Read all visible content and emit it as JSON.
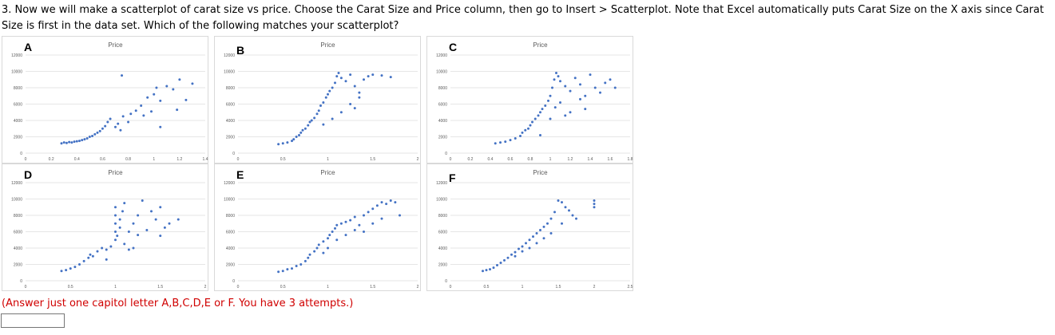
{
  "question": "3. Now we will make a scatterplot of carat size vs price. Choose the Carat Size and Price column, then go to Insert > Scatterplot. Note that Excel automatically puts Carat Size on the X axis since Carat Size is first in the data set. Which of the following matches your scatterplot?",
  "answer_note": "(Answer just one capitol letter A,B,C,D,E or F. You have 3 attempts.)",
  "answer_value": "",
  "chart_data": [
    {
      "letter": "A",
      "type": "scatter",
      "title": "Price",
      "color": "#4472c4",
      "xlim": [
        0,
        1.4
      ],
      "ylim": [
        0,
        12000
      ],
      "grid": true,
      "xticks": [
        "0",
        "0.2",
        "0.4",
        "0.6",
        "0.8",
        "1",
        "1.2",
        "1.4"
      ],
      "yticks": [
        "0",
        "2000",
        "4000",
        "6000",
        "8000",
        "10000",
        "12000"
      ],
      "points": [
        [
          0.28,
          1200
        ],
        [
          0.3,
          1300
        ],
        [
          0.32,
          1250
        ],
        [
          0.34,
          1350
        ],
        [
          0.36,
          1300
        ],
        [
          0.38,
          1400
        ],
        [
          0.4,
          1450
        ],
        [
          0.42,
          1500
        ],
        [
          0.44,
          1600
        ],
        [
          0.46,
          1700
        ],
        [
          0.48,
          1800
        ],
        [
          0.5,
          2000
        ],
        [
          0.52,
          2100
        ],
        [
          0.54,
          2300
        ],
        [
          0.56,
          2500
        ],
        [
          0.58,
          2700
        ],
        [
          0.6,
          3000
        ],
        [
          0.62,
          3300
        ],
        [
          0.64,
          3800
        ],
        [
          0.66,
          4200
        ],
        [
          0.7,
          3200
        ],
        [
          0.72,
          3600
        ],
        [
          0.74,
          2800
        ],
        [
          0.76,
          4500
        ],
        [
          0.8,
          3800
        ],
        [
          0.82,
          4800
        ],
        [
          0.86,
          5200
        ],
        [
          0.9,
          5800
        ],
        [
          0.92,
          4600
        ],
        [
          0.95,
          6800
        ],
        [
          1.0,
          7200
        ],
        [
          1.02,
          8000
        ],
        [
          1.05,
          6400
        ],
        [
          1.1,
          8200
        ],
        [
          1.15,
          7800
        ],
        [
          1.2,
          9000
        ],
        [
          1.25,
          6500
        ],
        [
          1.3,
          8500
        ],
        [
          0.75,
          9500
        ],
        [
          1.05,
          3200
        ],
        [
          0.98,
          5100
        ],
        [
          1.18,
          5300
        ]
      ]
    },
    {
      "letter": "B",
      "type": "scatter",
      "title": "Price",
      "color": "#4472c4",
      "xlim": [
        0,
        2
      ],
      "ylim": [
        0,
        12000
      ],
      "grid": true,
      "xticks": [
        "0",
        "0.5",
        "1",
        "1.5",
        "2"
      ],
      "yticks": [
        "0",
        "2000",
        "4000",
        "6000",
        "8000",
        "10000",
        "12000"
      ],
      "points": [
        [
          0.45,
          1100
        ],
        [
          0.5,
          1200
        ],
        [
          0.55,
          1300
        ],
        [
          0.6,
          1500
        ],
        [
          0.62,
          1700
        ],
        [
          0.65,
          2000
        ],
        [
          0.68,
          2200
        ],
        [
          0.7,
          2500
        ],
        [
          0.72,
          2800
        ],
        [
          0.75,
          3000
        ],
        [
          0.78,
          3400
        ],
        [
          0.8,
          3800
        ],
        [
          0.82,
          4000
        ],
        [
          0.85,
          4300
        ],
        [
          0.88,
          4800
        ],
        [
          0.9,
          5200
        ],
        [
          0.92,
          5800
        ],
        [
          0.95,
          6200
        ],
        [
          0.98,
          6800
        ],
        [
          1.0,
          7200
        ],
        [
          1.02,
          7600
        ],
        [
          1.05,
          8000
        ],
        [
          1.08,
          8600
        ],
        [
          1.1,
          9400
        ],
        [
          1.12,
          9800
        ],
        [
          1.15,
          9200
        ],
        [
          1.2,
          8800
        ],
        [
          1.25,
          9600
        ],
        [
          1.3,
          8200
        ],
        [
          1.35,
          7400
        ],
        [
          1.4,
          9000
        ],
        [
          1.45,
          9400
        ],
        [
          1.5,
          9600
        ],
        [
          1.6,
          9500
        ],
        [
          1.7,
          9300
        ],
        [
          0.95,
          3500
        ],
        [
          1.05,
          4200
        ],
        [
          1.15,
          5000
        ],
        [
          1.25,
          6000
        ],
        [
          1.3,
          5500
        ],
        [
          1.35,
          6800
        ]
      ]
    },
    {
      "letter": "C",
      "type": "scatter",
      "title": "Price",
      "color": "#4472c4",
      "xlim": [
        0,
        1.8
      ],
      "ylim": [
        0,
        12000
      ],
      "grid": true,
      "xticks": [
        "0",
        "0.2",
        "0.4",
        "0.6",
        "0.8",
        "1",
        "1.2",
        "1.4",
        "1.6",
        "1.8"
      ],
      "yticks": [
        "0",
        "2000",
        "4000",
        "6000",
        "8000",
        "10000",
        "12000"
      ],
      "points": [
        [
          0.45,
          1200
        ],
        [
          0.5,
          1300
        ],
        [
          0.55,
          1400
        ],
        [
          0.6,
          1600
        ],
        [
          0.65,
          1800
        ],
        [
          0.7,
          2100
        ],
        [
          0.72,
          2500
        ],
        [
          0.75,
          2800
        ],
        [
          0.78,
          3000
        ],
        [
          0.8,
          3400
        ],
        [
          0.82,
          3800
        ],
        [
          0.85,
          4200
        ],
        [
          0.88,
          4600
        ],
        [
          0.9,
          5000
        ],
        [
          0.92,
          5400
        ],
        [
          0.95,
          5800
        ],
        [
          0.98,
          6400
        ],
        [
          1.0,
          7000
        ],
        [
          1.02,
          8000
        ],
        [
          1.04,
          9000
        ],
        [
          1.06,
          9800
        ],
        [
          1.08,
          9400
        ],
        [
          1.1,
          8800
        ],
        [
          1.15,
          8200
        ],
        [
          1.2,
          7600
        ],
        [
          1.25,
          9200
        ],
        [
          1.3,
          8400
        ],
        [
          1.35,
          7000
        ],
        [
          1.4,
          9600
        ],
        [
          1.45,
          8000
        ],
        [
          1.5,
          7400
        ],
        [
          1.55,
          8600
        ],
        [
          1.6,
          9000
        ],
        [
          1.65,
          8000
        ],
        [
          1.05,
          5600
        ],
        [
          1.1,
          6200
        ],
        [
          1.2,
          5000
        ],
        [
          1.3,
          6600
        ],
        [
          0.9,
          2200
        ],
        [
          1.0,
          4200
        ],
        [
          1.15,
          4600
        ],
        [
          1.35,
          5400
        ]
      ]
    },
    {
      "letter": "D",
      "type": "scatter",
      "title": "Price",
      "color": "#4472c4",
      "xlim": [
        0,
        2
      ],
      "ylim": [
        0,
        12000
      ],
      "grid": true,
      "xticks": [
        "0",
        "0.5",
        "1",
        "1.5",
        "2"
      ],
      "yticks": [
        "0",
        "2000",
        "4000",
        "6000",
        "8000",
        "10000",
        "12000"
      ],
      "points": [
        [
          0.4,
          1200
        ],
        [
          0.45,
          1300
        ],
        [
          0.5,
          1500
        ],
        [
          0.55,
          1700
        ],
        [
          0.6,
          2000
        ],
        [
          0.65,
          2400
        ],
        [
          0.7,
          2800
        ],
        [
          0.72,
          3200
        ],
        [
          0.75,
          3000
        ],
        [
          0.8,
          3600
        ],
        [
          0.85,
          4000
        ],
        [
          0.9,
          3800
        ],
        [
          0.95,
          4200
        ],
        [
          1.0,
          5000
        ],
        [
          1.0,
          6000
        ],
        [
          1.0,
          7000
        ],
        [
          1.0,
          8000
        ],
        [
          1.0,
          9000
        ],
        [
          1.02,
          5500
        ],
        [
          1.05,
          6500
        ],
        [
          1.05,
          7500
        ],
        [
          1.08,
          8500
        ],
        [
          1.1,
          4500
        ],
        [
          1.1,
          9500
        ],
        [
          1.15,
          6000
        ],
        [
          1.2,
          7000
        ],
        [
          1.2,
          4000
        ],
        [
          1.25,
          8000
        ],
        [
          1.3,
          9800
        ],
        [
          1.4,
          8500
        ],
        [
          1.45,
          7500
        ],
        [
          1.5,
          9000
        ],
        [
          1.55,
          6500
        ],
        [
          1.6,
          7000
        ],
        [
          1.7,
          7500
        ],
        [
          1.5,
          5500
        ],
        [
          1.35,
          6200
        ],
        [
          1.15,
          3800
        ],
        [
          0.9,
          2600
        ],
        [
          1.25,
          5600
        ]
      ]
    },
    {
      "letter": "E",
      "type": "scatter",
      "title": "Price",
      "color": "#4472c4",
      "xlim": [
        0,
        2
      ],
      "ylim": [
        0,
        12000
      ],
      "grid": true,
      "xticks": [
        "0",
        "0.5",
        "1",
        "1.5",
        "2"
      ],
      "yticks": [
        "0",
        "2000",
        "4000",
        "6000",
        "8000",
        "10000",
        "12000"
      ],
      "points": [
        [
          0.45,
          1100
        ],
        [
          0.5,
          1200
        ],
        [
          0.55,
          1400
        ],
        [
          0.6,
          1500
        ],
        [
          0.65,
          1800
        ],
        [
          0.7,
          2000
        ],
        [
          0.75,
          2400
        ],
        [
          0.78,
          2800
        ],
        [
          0.8,
          3200
        ],
        [
          0.85,
          3600
        ],
        [
          0.88,
          4000
        ],
        [
          0.9,
          4400
        ],
        [
          0.95,
          4800
        ],
        [
          1.0,
          5200
        ],
        [
          1.02,
          5600
        ],
        [
          1.05,
          6000
        ],
        [
          1.08,
          6400
        ],
        [
          1.1,
          6800
        ],
        [
          1.15,
          7000
        ],
        [
          1.2,
          7200
        ],
        [
          1.25,
          7400
        ],
        [
          1.3,
          7800
        ],
        [
          1.35,
          6800
        ],
        [
          1.4,
          8000
        ],
        [
          1.45,
          8400
        ],
        [
          1.5,
          8800
        ],
        [
          1.55,
          9200
        ],
        [
          1.6,
          9600
        ],
        [
          1.65,
          9400
        ],
        [
          1.7,
          9800
        ],
        [
          1.75,
          9600
        ],
        [
          1.8,
          8000
        ],
        [
          1.0,
          4000
        ],
        [
          1.1,
          5000
        ],
        [
          1.2,
          5600
        ],
        [
          1.3,
          6200
        ],
        [
          1.4,
          6000
        ],
        [
          1.5,
          7000
        ],
        [
          1.6,
          7600
        ],
        [
          0.95,
          3400
        ]
      ]
    },
    {
      "letter": "F",
      "type": "scatter",
      "title": "Price",
      "color": "#4472c4",
      "xlim": [
        0,
        2.5
      ],
      "ylim": [
        0,
        12000
      ],
      "grid": true,
      "xticks": [
        "0",
        "0.5",
        "1",
        "1.5",
        "2",
        "2.5"
      ],
      "yticks": [
        "0",
        "2000",
        "4000",
        "6000",
        "8000",
        "10000",
        "12000"
      ],
      "points": [
        [
          0.45,
          1200
        ],
        [
          0.5,
          1300
        ],
        [
          0.55,
          1400
        ],
        [
          0.6,
          1600
        ],
        [
          0.65,
          1900
        ],
        [
          0.7,
          2200
        ],
        [
          0.75,
          2500
        ],
        [
          0.8,
          2800
        ],
        [
          0.85,
          3200
        ],
        [
          0.9,
          3500
        ],
        [
          0.95,
          3900
        ],
        [
          1.0,
          4200
        ],
        [
          1.05,
          4600
        ],
        [
          1.1,
          5000
        ],
        [
          1.15,
          5400
        ],
        [
          1.2,
          5800
        ],
        [
          1.25,
          6200
        ],
        [
          1.3,
          6600
        ],
        [
          1.35,
          7000
        ],
        [
          1.4,
          7600
        ],
        [
          1.45,
          8400
        ],
        [
          1.5,
          9800
        ],
        [
          1.55,
          9600
        ],
        [
          1.6,
          9000
        ],
        [
          1.65,
          8600
        ],
        [
          1.7,
          8000
        ],
        [
          1.75,
          7600
        ],
        [
          1.55,
          7000
        ],
        [
          2.0,
          9800
        ],
        [
          2.0,
          9400
        ],
        [
          2.0,
          9000
        ],
        [
          1.1,
          4000
        ],
        [
          1.2,
          4600
        ],
        [
          1.3,
          5200
        ],
        [
          1.4,
          5800
        ],
        [
          1.0,
          3600
        ],
        [
          0.9,
          3000
        ]
      ]
    }
  ]
}
